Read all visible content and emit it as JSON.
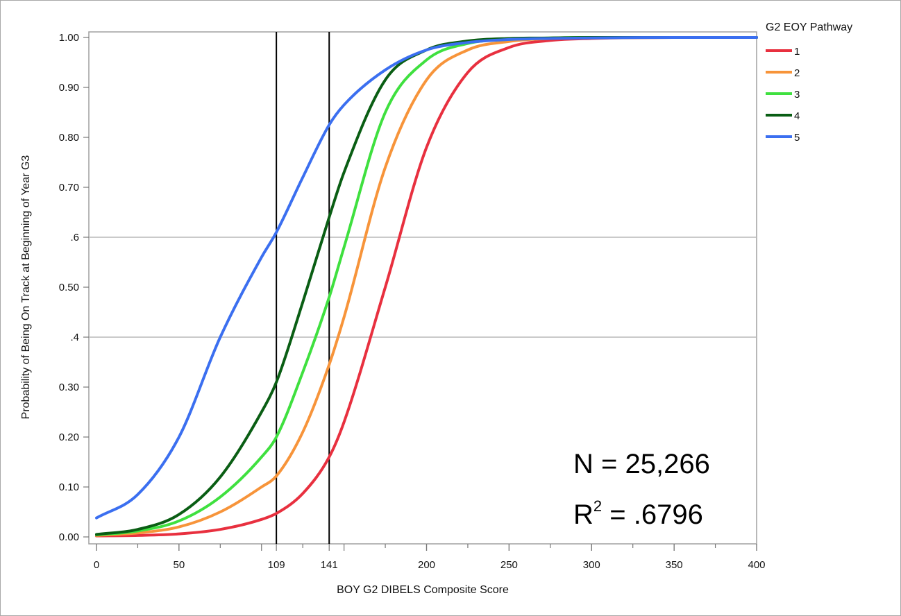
{
  "chart_data": {
    "type": "line",
    "title": "",
    "xlabel": "BOY G2 DIBELS Composite Score",
    "ylabel": "Probability of Being On Track at Beginning of Year G3",
    "xlim": [
      0,
      400
    ],
    "ylim": [
      0,
      1
    ],
    "x_ticks": [
      "0",
      "50",
      "109",
      "141",
      "200",
      "250",
      "300",
      "350",
      "400"
    ],
    "x_tick_values": [
      0,
      50,
      109,
      141,
      200,
      250,
      300,
      350,
      400
    ],
    "y_ticks": [
      "0.00",
      "0.10",
      "0.20",
      "0.30",
      ".4",
      "0.50",
      ".6",
      "0.70",
      "0.80",
      "0.90",
      "1.00"
    ],
    "y_tick_values": [
      0,
      0.1,
      0.2,
      0.3,
      0.4,
      0.5,
      0.6,
      0.7,
      0.8,
      0.9,
      1.0
    ],
    "reference_lines_x": [
      109,
      141
    ],
    "reference_lines_y": [
      0.4,
      0.6
    ],
    "grid": false,
    "legend": {
      "title": "G2 EOY Pathway",
      "placement": "right"
    },
    "x": [
      0,
      25,
      50,
      75,
      100,
      109,
      125,
      141,
      150,
      175,
      200,
      225,
      250,
      275,
      300,
      350,
      400
    ],
    "series": [
      {
        "name": "1",
        "color": "#e8303f",
        "values": [
          0.002,
          0.003,
          0.006,
          0.015,
          0.035,
          0.047,
          0.087,
          0.16,
          0.23,
          0.5,
          0.78,
          0.93,
          0.98,
          0.994,
          0.998,
          1.0,
          1.0
        ]
      },
      {
        "name": "2",
        "color": "#f7943a",
        "values": [
          0.003,
          0.008,
          0.02,
          0.05,
          0.1,
          0.122,
          0.21,
          0.345,
          0.44,
          0.74,
          0.915,
          0.975,
          0.992,
          0.998,
          0.999,
          1.0,
          1.0
        ]
      },
      {
        "name": "3",
        "color": "#3fe03f",
        "values": [
          0.004,
          0.012,
          0.032,
          0.08,
          0.16,
          0.2,
          0.33,
          0.48,
          0.58,
          0.85,
          0.955,
          0.988,
          0.996,
          0.999,
          1.0,
          1.0,
          1.0
        ]
      },
      {
        "name": "4",
        "color": "#0a5e14",
        "values": [
          0.005,
          0.015,
          0.045,
          0.12,
          0.25,
          0.31,
          0.47,
          0.64,
          0.73,
          0.915,
          0.975,
          0.993,
          0.998,
          0.999,
          1.0,
          1.0,
          1.0
        ]
      },
      {
        "name": "5",
        "color": "#3b6ff0",
        "values": [
          0.038,
          0.085,
          0.2,
          0.4,
          0.56,
          0.61,
          0.72,
          0.825,
          0.865,
          0.935,
          0.975,
          0.99,
          0.996,
          0.998,
          0.999,
          1.0,
          1.0
        ]
      }
    ],
    "annotations": {
      "n_line": "N = 25,266",
      "r2_prefix": "R",
      "r2_sup": "2",
      "r2_suffix": " = .6796"
    }
  }
}
